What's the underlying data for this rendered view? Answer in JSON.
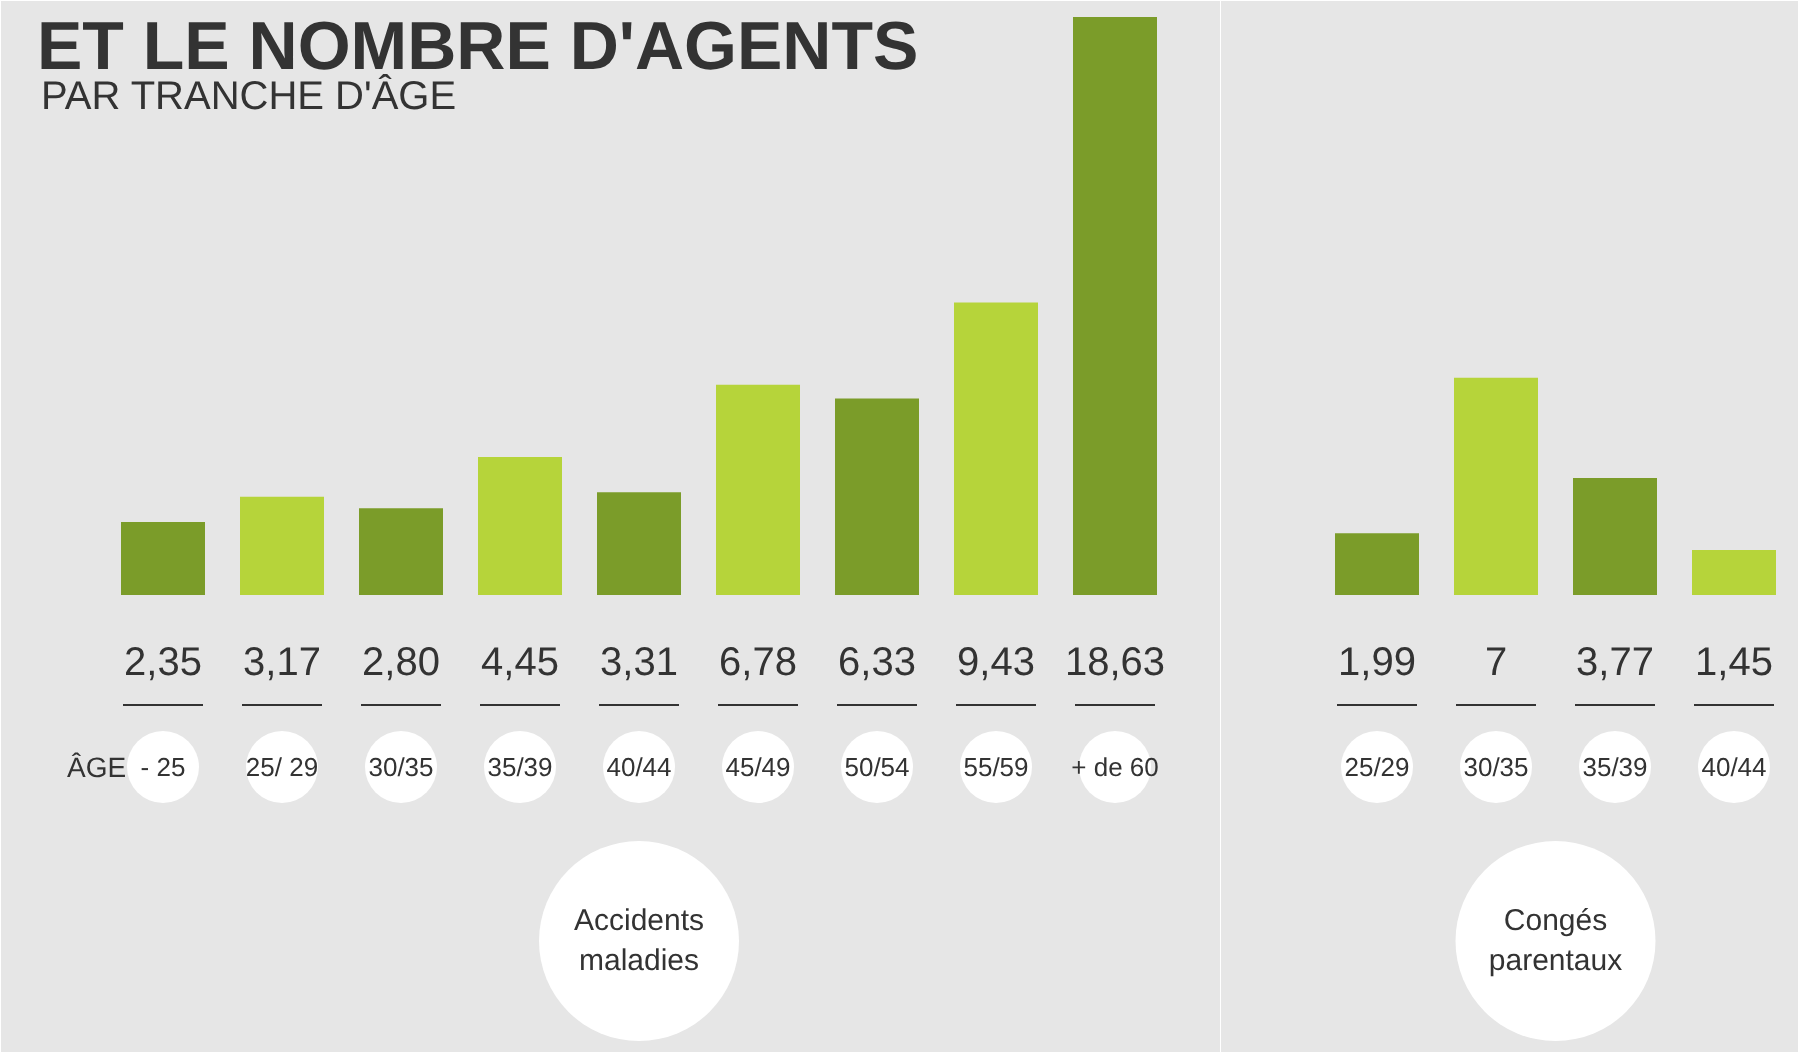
{
  "chart_data": [
    {
      "type": "bar",
      "title": "ET LE NOMBRE D'AGENTS",
      "subtitle": "PAR TRANCHE D'ÂGE",
      "xlabel": "Accidents maladies",
      "annotations": [
        "ÂGE"
      ],
      "categories": [
        "- 25",
        "25/ 29",
        "30/35",
        "35/39",
        "40/44",
        "45/49",
        "50/54",
        "55/59",
        "+ de 60"
      ],
      "values": [
        2.35,
        3.17,
        2.8,
        4.45,
        3.31,
        6.78,
        6.33,
        9.43,
        18.63
      ],
      "value_labels": [
        "2,35",
        "3,17",
        "2,80",
        "4,45",
        "3,31",
        "6,78",
        "6,33",
        "9,43",
        "18,63"
      ],
      "colors": [
        "#7b9c29",
        "#b6d43a",
        "#7b9c29",
        "#b6d43a",
        "#7b9c29",
        "#b6d43a",
        "#7b9c29",
        "#b6d43a",
        "#7b9c29"
      ]
    },
    {
      "type": "bar",
      "xlabel": "Congés parentaux",
      "categories": [
        "25/29",
        "30/35",
        "35/39",
        "40/44"
      ],
      "values": [
        1.99,
        7,
        3.77,
        1.45
      ],
      "value_labels": [
        "1,99",
        "7",
        "3,77",
        "1,45"
      ],
      "colors": [
        "#7b9c29",
        "#b6d43a",
        "#7b9c29",
        "#b6d43a"
      ]
    }
  ]
}
